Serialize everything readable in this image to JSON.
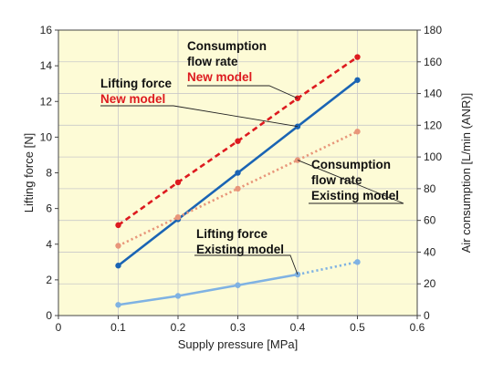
{
  "chart_data": {
    "type": "line",
    "xlabel": "Supply pressure [MPa]",
    "ylabel_left": "Lifting force [N]",
    "ylabel_right": "Air consumption [L/min (ANR)]",
    "xlim": [
      0,
      0.6
    ],
    "ylim_left": [
      0,
      16
    ],
    "ylim_right": [
      0,
      180
    ],
    "x_ticks": [
      "0",
      "0.1",
      "0.2",
      "0.3",
      "0.4",
      "0.5",
      "0.6"
    ],
    "y_left_ticks": [
      "0",
      "2",
      "4",
      "6",
      "8",
      "10",
      "12",
      "14",
      "16"
    ],
    "y_right_ticks": [
      "0",
      "20",
      "40",
      "60",
      "80",
      "100",
      "120",
      "140",
      "160",
      "180"
    ],
    "grid": true,
    "series": [
      {
        "key": "lift_new",
        "axis": "left",
        "style": "solid",
        "color": "#1a64b4",
        "points": [
          [
            0.1,
            2.8
          ],
          [
            0.2,
            5.4
          ],
          [
            0.3,
            8.0
          ],
          [
            0.4,
            10.6
          ],
          [
            0.5,
            13.2
          ]
        ]
      },
      {
        "key": "flow_new",
        "axis": "right",
        "style": "dashed",
        "color": "#dd1a1f",
        "points": [
          [
            0.1,
            57
          ],
          [
            0.2,
            84
          ],
          [
            0.3,
            110
          ],
          [
            0.4,
            137
          ],
          [
            0.5,
            163
          ]
        ]
      },
      {
        "key": "flow_existing",
        "axis": "right",
        "style": "dotted",
        "color": "#e8967a",
        "points": [
          [
            0.1,
            44
          ],
          [
            0.2,
            62
          ],
          [
            0.3,
            80
          ],
          [
            0.4,
            98
          ],
          [
            0.5,
            116
          ]
        ]
      },
      {
        "key": "lift_existing",
        "axis": "left",
        "style": "solid",
        "solid_until": 0.4,
        "color": "#7fb2e3",
        "points": [
          [
            0.1,
            0.6
          ],
          [
            0.2,
            1.1
          ],
          [
            0.3,
            1.7
          ],
          [
            0.4,
            2.3
          ],
          [
            0.5,
            3.0
          ]
        ]
      }
    ],
    "annotations": [
      {
        "key": "ann_flow_new",
        "lines": [
          "Consumption",
          "flow rate"
        ],
        "highlight": "New model",
        "highlight_color": "#dd1a1f",
        "text_color": "#111111",
        "target": [
          0.4,
          137
        ],
        "target_axis": "right"
      },
      {
        "key": "ann_lift_new",
        "lines": [
          "Lifting force"
        ],
        "highlight": "New model",
        "highlight_color": "#dd1a1f",
        "text_color": "#111111",
        "target": [
          0.4,
          10.6
        ],
        "target_axis": "left"
      },
      {
        "key": "ann_flow_existing",
        "lines": [
          "Consumption",
          "flow rate",
          "Existing model"
        ],
        "highlight": "",
        "highlight_color": "#111111",
        "text_color": "#111111",
        "target": [
          0.4,
          98
        ],
        "target_axis": "right"
      },
      {
        "key": "ann_lift_existing",
        "lines": [
          "Lifting force",
          "Existing model"
        ],
        "highlight": "",
        "highlight_color": "#111111",
        "text_color": "#111111",
        "target": [
          0.4,
          2.3
        ],
        "target_axis": "left"
      }
    ],
    "colors": {
      "plot_background": "#fdfbd6",
      "grid": "#c9c9c9",
      "axis": "#444444"
    }
  }
}
